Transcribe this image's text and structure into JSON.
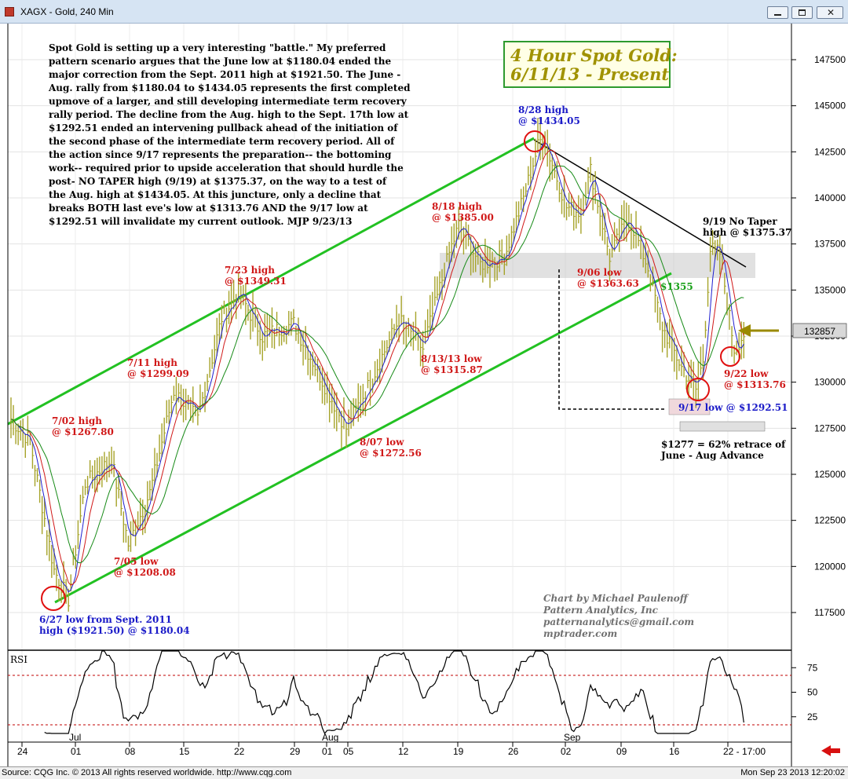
{
  "window": {
    "title": "XAGX - Gold, 240 Min"
  },
  "status": {
    "left": "Source: CQG Inc. © 2013 All rights reserved worldwide. http://www.cqg.com",
    "right": "Mon Sep 23 2013 12:20:02"
  },
  "chart_data": {
    "type": "bar",
    "title": "4 Hour Spot Gold:",
    "subtitle": "6/11/13 - Present",
    "y_ticks": [
      "147500",
      "145000",
      "142500",
      "140000",
      "137500",
      "135000",
      "132500",
      "130000",
      "127500",
      "125000",
      "122500",
      "120000",
      "117500"
    ],
    "ylim": [
      116000,
      149500
    ],
    "last_price": "132857",
    "x_ticks": [
      "24",
      "01",
      "08",
      "15",
      "22",
      "29",
      "01",
      "05",
      "12",
      "19",
      "26",
      "02",
      "09",
      "16",
      "22 - 17:00"
    ],
    "month_labels": [
      "Jul",
      "Aug",
      "Sep"
    ],
    "commentary": [
      "Spot Gold is setting up a very interesting \"battle.\" My preferred",
      "pattern scenario argues that the June low at $1180.04 ended the",
      "major correction from the Sept. 2011 high at $1921.50. The June -",
      "Aug. rally from $1180.04 to $1434.05 represents the first completed",
      "upmove of a larger, and still developing intermediate term recovery",
      "rally period.  The decline from the Aug. high to the Sept. 17th low at",
      "$1292.51 ended an intervening pullback ahead of the initiation of",
      "the second phase of the intermediate term recovery period.  All of",
      "the action since 9/17 represents the preparation-- the bottoming",
      "work-- required prior to upside acceleration that should hurdle the",
      "post- NO TAPER high (9/19) at $1375.37, on the way to a test of",
      "the Aug. high at $1434.05.  At this juncture, only a decline that",
      "breaks BOTH last eve's low at $1313.76 AND the 9/17 low at",
      "$1292.51 will invalidate my current outlook.  MJP  9/23/13"
    ],
    "annotations": {
      "a_828": [
        "8/28 high",
        "@ $1434.05"
      ],
      "a_818": [
        "8/18 high",
        "@ $1385.00"
      ],
      "a_723": [
        "7/23 high",
        "@ $1349.31"
      ],
      "a_711": [
        "7/11 high",
        "@ $1299.09"
      ],
      "a_702": [
        "7/02 high",
        "@ $1267.80"
      ],
      "a_705": [
        "7/05 low",
        "@ $1208.08"
      ],
      "a_627": [
        "6/27 low from Sept. 2011",
        "high ($1921.50)  @ $1180.04"
      ],
      "a_807": [
        "8/07 low",
        "@ $1272.56"
      ],
      "a_813": [
        "8/13/13 low",
        "@ $1315.87"
      ],
      "a_906": [
        "9/06 low",
        "@ $1363.63"
      ],
      "a_919": [
        "9/19 No Taper",
        "high @ $1375.37"
      ],
      "a_922": [
        "9/22 low",
        "@ $1313.76"
      ],
      "a_917": [
        "9/17 low @ $1292.51"
      ],
      "a_1355": [
        "$1355"
      ],
      "a_retrace": [
        "$1277 = 62% retrace of",
        "June - Aug Advance"
      ]
    },
    "credits": [
      "Chart by Michael Paulenoff",
      "Pattern Analytics, Inc",
      "patternanalytics@gmail.com",
      "mptrader.com"
    ],
    "rsi": {
      "label": "RSI",
      "ticks": [
        "75",
        "50",
        "25"
      ]
    },
    "pivots": [
      {
        "t": 0,
        "v": 1280
      },
      {
        "t": 8,
        "v": 1268
      },
      {
        "t": 18,
        "v": 1198
      },
      {
        "t": 24,
        "v": 1182
      },
      {
        "t": 31,
        "v": 1245
      },
      {
        "t": 42,
        "v": 1258
      },
      {
        "t": 49,
        "v": 1212
      },
      {
        "t": 58,
        "v": 1240
      },
      {
        "t": 68,
        "v": 1295
      },
      {
        "t": 78,
        "v": 1280
      },
      {
        "t": 88,
        "v": 1335
      },
      {
        "t": 95,
        "v": 1349
      },
      {
        "t": 105,
        "v": 1325
      },
      {
        "t": 118,
        "v": 1332
      },
      {
        "t": 128,
        "v": 1306
      },
      {
        "t": 140,
        "v": 1275
      },
      {
        "t": 150,
        "v": 1300
      },
      {
        "t": 162,
        "v": 1334
      },
      {
        "t": 172,
        "v": 1318
      },
      {
        "t": 183,
        "v": 1370
      },
      {
        "t": 187,
        "v": 1385
      },
      {
        "t": 196,
        "v": 1364
      },
      {
        "t": 206,
        "v": 1368
      },
      {
        "t": 214,
        "v": 1400
      },
      {
        "t": 220,
        "v": 1428
      },
      {
        "t": 222,
        "v": 1434
      },
      {
        "t": 232,
        "v": 1395
      },
      {
        "t": 238,
        "v": 1392
      },
      {
        "t": 242,
        "v": 1415
      },
      {
        "t": 250,
        "v": 1368
      },
      {
        "t": 258,
        "v": 1390
      },
      {
        "t": 266,
        "v": 1362
      },
      {
        "t": 272,
        "v": 1330
      },
      {
        "t": 280,
        "v": 1308
      },
      {
        "t": 286,
        "v": 1296
      },
      {
        "t": 289,
        "v": 1312
      },
      {
        "t": 292,
        "v": 1372
      },
      {
        "t": 296,
        "v": 1370
      },
      {
        "t": 302,
        "v": 1318
      },
      {
        "t": 306,
        "v": 1326
      }
    ]
  }
}
